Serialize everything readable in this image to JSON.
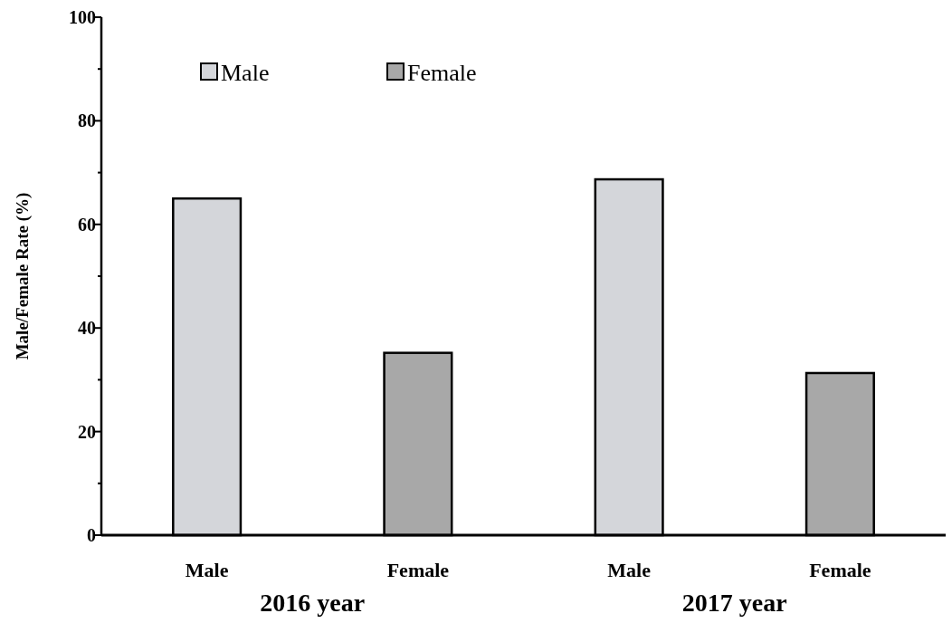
{
  "chart_data": {
    "type": "bar",
    "ylabel": "Male/Female Rate (%)",
    "categories": [
      "Male",
      "Female",
      "Male",
      "Female"
    ],
    "series": [
      {
        "name": "Male",
        "color": "#d4d6da",
        "values": [
          65,
          null,
          68.7,
          null
        ]
      },
      {
        "name": "Female",
        "color": "#a8a8a8",
        "values": [
          null,
          35.2,
          null,
          31.3
        ]
      }
    ],
    "ylim": [
      0,
      100
    ],
    "yticks": [
      0,
      {
        "value": 10,
        "label": null
      },
      20,
      {
        "value": 30,
        "label": null
      },
      40,
      {
        "value": 50,
        "label": null
      },
      60,
      {
        "value": 70,
        "label": null
      },
      80,
      {
        "value": 90,
        "label": null
      },
      100
    ],
    "annotations": [
      "2016 year",
      "2017 year"
    ],
    "legend": "top left",
    "grid": false
  }
}
